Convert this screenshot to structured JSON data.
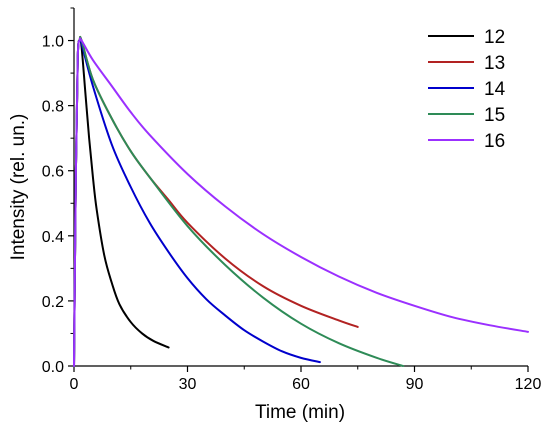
{
  "chart_data": {
    "type": "line",
    "title": "",
    "xlabel": "Time (min)",
    "ylabel": "Intensity (rel. un.)",
    "xlim": [
      0,
      120
    ],
    "ylim": [
      0,
      1.1
    ],
    "x_ticks": [
      0,
      30,
      60,
      90,
      120
    ],
    "x_tick_labels": [
      "0",
      "30",
      "60",
      "90",
      "120"
    ],
    "y_ticks": [
      0.0,
      0.2,
      0.4,
      0.6,
      0.8,
      1.0
    ],
    "y_tick_labels": [
      "0.0",
      "0.2",
      "0.4",
      "0.6",
      "0.8",
      "1.0"
    ],
    "grid": false,
    "legend_position": "top-right",
    "series": [
      {
        "name": "12",
        "color": "#000000",
        "x": [
          0,
          0.5,
          1,
          1.5,
          2,
          3,
          4,
          5,
          6,
          8,
          10,
          12,
          15,
          18,
          21,
          25
        ],
        "y": [
          0,
          0.6,
          0.95,
          1.0,
          0.98,
          0.84,
          0.7,
          0.58,
          0.48,
          0.34,
          0.255,
          0.19,
          0.135,
          0.1,
          0.077,
          0.057
        ]
      },
      {
        "name": "13",
        "color": "#b22222",
        "x": [
          0,
          0.5,
          1,
          1.5,
          2,
          5,
          10,
          15,
          20,
          25,
          30,
          40,
          50,
          60,
          70,
          75
        ],
        "y": [
          0,
          0.6,
          0.95,
          1.0,
          1.0,
          0.88,
          0.76,
          0.66,
          0.58,
          0.51,
          0.44,
          0.33,
          0.245,
          0.185,
          0.14,
          0.12
        ]
      },
      {
        "name": "14",
        "color": "#0000cc",
        "x": [
          0,
          0.5,
          1,
          1.5,
          2,
          5,
          10,
          15,
          20,
          25,
          30,
          35,
          40,
          45,
          50,
          55,
          60,
          65
        ],
        "y": [
          0,
          0.6,
          0.95,
          1.0,
          0.99,
          0.86,
          0.68,
          0.55,
          0.44,
          0.35,
          0.27,
          0.205,
          0.155,
          0.11,
          0.075,
          0.045,
          0.025,
          0.012
        ]
      },
      {
        "name": "15",
        "color": "#2e8b57",
        "x": [
          0,
          0.5,
          1,
          1.5,
          2,
          5,
          10,
          15,
          20,
          30,
          40,
          50,
          60,
          70,
          80,
          87
        ],
        "y": [
          0,
          0.6,
          0.95,
          1.0,
          1.0,
          0.88,
          0.76,
          0.66,
          0.58,
          0.43,
          0.31,
          0.21,
          0.13,
          0.07,
          0.025,
          0.0
        ]
      },
      {
        "name": "16",
        "color": "#9b30ff",
        "x": [
          0,
          0.5,
          1,
          1.5,
          2,
          5,
          10,
          15,
          20,
          30,
          40,
          50,
          60,
          70,
          80,
          90,
          100,
          110,
          120
        ],
        "y": [
          0,
          0.6,
          0.95,
          1.0,
          1.0,
          0.94,
          0.86,
          0.78,
          0.71,
          0.59,
          0.49,
          0.405,
          0.335,
          0.275,
          0.225,
          0.185,
          0.15,
          0.125,
          0.105
        ]
      }
    ]
  }
}
